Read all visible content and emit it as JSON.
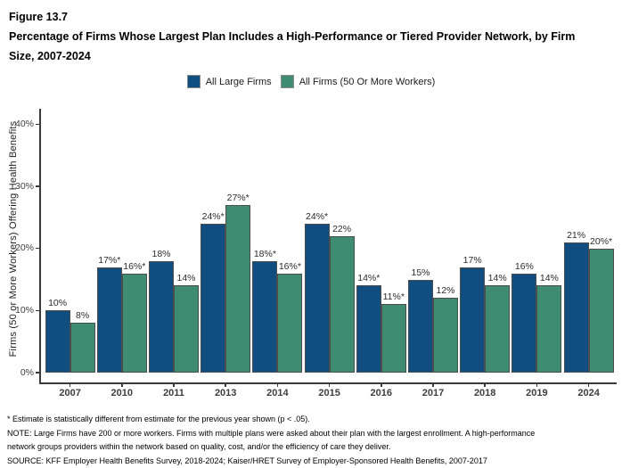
{
  "figure": {
    "number": "Figure 13.7",
    "title": "Percentage of Firms Whose Largest Plan Includes a High-Performance or Tiered Provider Network, by Firm Size, 2007-2024"
  },
  "colors": {
    "large_firms_blue": "#104E82",
    "all_firms_green": "#3E8D73",
    "bar_border": "#4d4d4d",
    "axis": "#3a3a3a"
  },
  "chart_data": {
    "type": "bar",
    "title": "Percentage of Firms Whose Largest Plan Includes a High-Performance or Tiered Provider Network, by Firm Size, 2007-2024",
    "categories": [
      "2007",
      "2010",
      "2011",
      "2013",
      "2014",
      "2015",
      "2016",
      "2017",
      "2018",
      "2019",
      "2024"
    ],
    "series": [
      {
        "name": "All Large Firms",
        "color": "#104E82",
        "values": [
          10,
          17,
          18,
          24,
          18,
          24,
          14,
          15,
          17,
          16,
          21
        ],
        "labels": [
          "10%",
          "17%*",
          "18%",
          "24%*",
          "18%*",
          "24%*",
          "14%*",
          "15%",
          "17%",
          "16%",
          "21%"
        ]
      },
      {
        "name": "All Firms (50 Or More Workers)",
        "color": "#3E8D73",
        "values": [
          8,
          16,
          14,
          27,
          16,
          22,
          11,
          12,
          14,
          14,
          20
        ],
        "labels": [
          "8%",
          "16%*",
          "14%",
          "27%*",
          "16%*",
          "22%",
          "11%*",
          "12%",
          "14%",
          "14%",
          "20%*"
        ]
      }
    ],
    "xlabel": "",
    "ylabel": "Firms (50 or More Workers) Offering Health Benefits",
    "ytick_values": [
      0,
      10,
      20,
      30,
      40
    ],
    "ytick_labels": [
      "0%",
      "10%",
      "20%",
      "30%",
      "40%"
    ],
    "ylim": [
      0,
      42.5
    ],
    "grid": false,
    "legend_position": "top",
    "legend": [
      "All Large Firms",
      "All Firms (50 Or More Workers)"
    ]
  },
  "footnotes": [
    "* Estimate is statistically different from estimate for the previous year shown (p < .05).",
    "NOTE: Large Firms have 200 or more workers.  Firms with multiple plans were asked about their plan with the largest enrollment.  A high-performance",
    "network groups providers within the network based on quality, cost, and/or the efficiency of care they deliver.",
    "SOURCE: KFF Employer Health Benefits Survey, 2018-2024; Kaiser/HRET Survey of Employer-Sponsored Health Benefits, 2007-2017"
  ]
}
